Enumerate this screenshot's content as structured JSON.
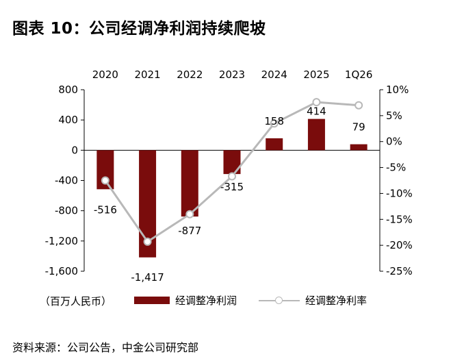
{
  "title": "图表 10：公司经调净利润持续爬坡",
  "source": "资料来源：公司公告，中金公司研究部",
  "unit_label": "（百万人民币）",
  "colors": {
    "bar": "#7a0c0c",
    "line": "#b8b8b8"
  },
  "chart_data": {
    "type": "bar",
    "categories": [
      "2020",
      "2021",
      "2022",
      "2023",
      "2024",
      "2025",
      "1Q26"
    ],
    "series": [
      {
        "name": "经调整净利润",
        "type": "bar",
        "axis": "left",
        "values": [
          -516,
          -1417,
          -877,
          -315,
          158,
          414,
          79
        ],
        "labels": [
          "-516",
          "-1,417",
          "-877",
          "-315",
          "158",
          "414",
          "79"
        ]
      },
      {
        "name": "经调整净利率",
        "type": "line",
        "axis": "right",
        "values": [
          -7.5,
          -19.3,
          -14.0,
          -6.7,
          3.5,
          7.6,
          7.0
        ]
      }
    ],
    "y_left": {
      "range": [
        -1600,
        800
      ],
      "ticks": [
        800,
        400,
        0,
        -400,
        -800,
        -1200,
        -1600
      ],
      "tick_labels": [
        "800",
        "400",
        "0",
        "-400",
        "-800",
        "-1,200",
        "-1,600"
      ]
    },
    "y_right": {
      "range": [
        -25,
        10
      ],
      "ticks": [
        10,
        5,
        0,
        -5,
        -10,
        -15,
        -20,
        -25
      ],
      "tick_labels": [
        "10%",
        "5%",
        "0%",
        "-5%",
        "-10%",
        "-15%",
        "-20%",
        "-25%"
      ]
    },
    "grid": false,
    "legend_position": "bottom"
  }
}
